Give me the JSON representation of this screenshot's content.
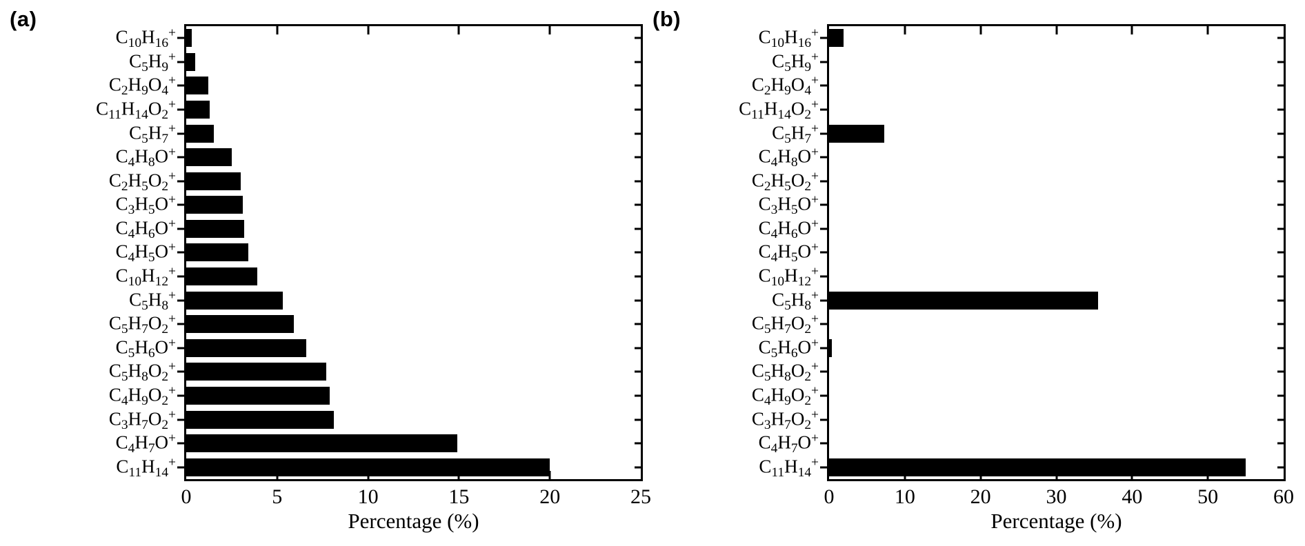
{
  "figure": {
    "background_color": "#ffffff",
    "text_color": "#000000",
    "axis_color": "#000000"
  },
  "chart_data": [
    {
      "type": "bar",
      "orientation": "horizontal",
      "panel_tag": "(a)",
      "xlabel": "Percentage (%)",
      "xlim": [
        0,
        25
      ],
      "xticks": [
        0,
        5,
        10,
        15,
        20,
        25
      ],
      "grid": "off",
      "legend": "none",
      "bar_color": "#000000",
      "categories_top_to_bottom": [
        "C10H16+",
        "C5H9+",
        "C2H9O4+",
        "C11H14O2+",
        "C5H7+",
        "C4H8O+",
        "C2H5O2+",
        "C3H5O+",
        "C4H6O+",
        "C4H5O+",
        "C10H12+",
        "C5H8+",
        "C5H7O2+",
        "C5H6O+",
        "C5H8O2+",
        "C4H9O2+",
        "C3H7O2+",
        "C4H7O+",
        "C11H14+"
      ],
      "values": [
        0.3,
        0.5,
        1.2,
        1.3,
        1.5,
        2.5,
        3.0,
        3.1,
        3.2,
        3.4,
        3.9,
        5.3,
        5.9,
        6.6,
        7.7,
        7.9,
        8.1,
        14.9,
        20.0
      ]
    },
    {
      "type": "bar",
      "orientation": "horizontal",
      "panel_tag": "(b)",
      "xlabel": "Percentage (%)",
      "xlim": [
        0,
        60
      ],
      "xticks": [
        0,
        10,
        20,
        30,
        40,
        50,
        60
      ],
      "grid": "off",
      "legend": "none",
      "bar_color": "#000000",
      "categories_top_to_bottom": [
        "C10H16+",
        "C5H9+",
        "C2H9O4+",
        "C11H14O2+",
        "C5H7+",
        "C4H8O+",
        "C2H5O2+",
        "C3H5O+",
        "C4H6O+",
        "C4H5O+",
        "C10H12+",
        "C5H8+",
        "C5H7O2+",
        "C5H6O+",
        "C5H8O2+",
        "C4H9O2+",
        "C3H7O2+",
        "C4H7O+",
        "C11H14+"
      ],
      "values": [
        1.9,
        0,
        0,
        0,
        7.3,
        0,
        0,
        0,
        0,
        0,
        0,
        35.5,
        0,
        0.4,
        0,
        0,
        0,
        0,
        55.0
      ]
    }
  ]
}
